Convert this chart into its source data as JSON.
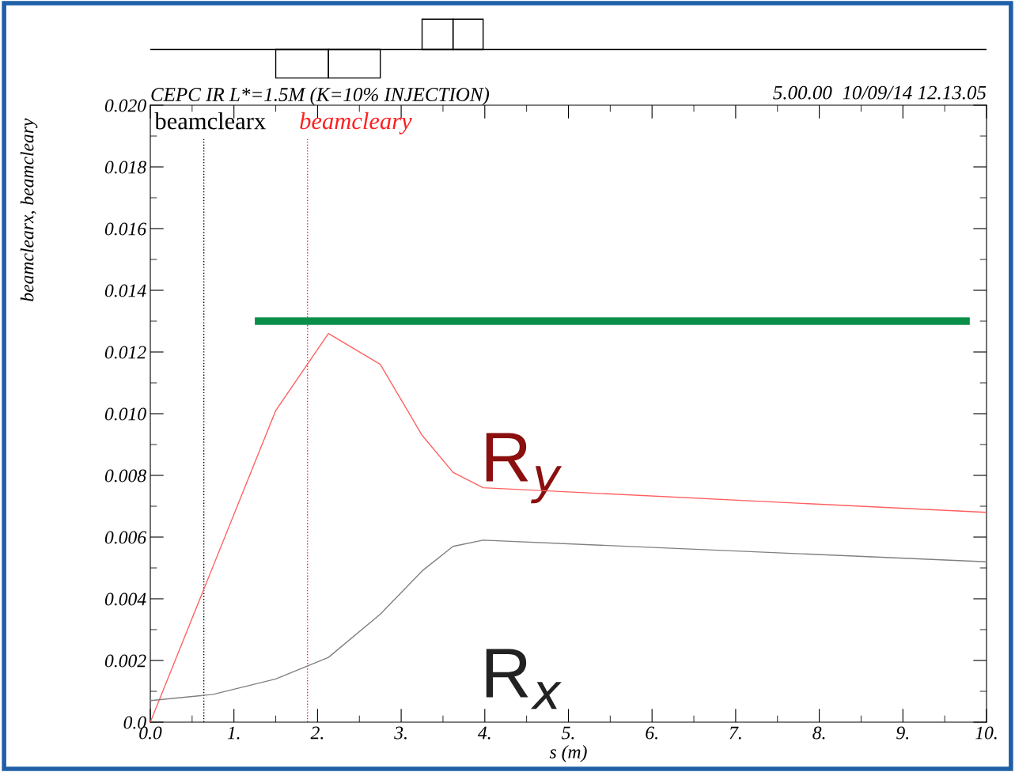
{
  "chart_data": {
    "type": "line",
    "title": "CEPC IR L*=1.5M (K=10% INJECTION)",
    "xlabel": "s (m)",
    "ylabel": "beamclearx, beamcleary",
    "annotations": [
      "5.00.00  10/09/14 12.13.05",
      "R$_{y}$",
      "R$_{x}$"
    ],
    "series": [
      {
        "color": "#ff6060",
        "x": [
          0,
          1.5,
          2.13,
          2.75,
          3.25,
          3.62,
          3.98,
          10
        ],
        "values": [
          0,
          0.0101,
          0.0126,
          0.0116,
          0.0093,
          0.0081,
          0.0076,
          0.0068
        ]
      },
      {
        "color": "#808080",
        "x": [
          0,
          0.75,
          1.5,
          2.13,
          2.75,
          3.25,
          3.62,
          3.98,
          10
        ],
        "values": [
          0.0007,
          0.0009,
          0.0014,
          0.0021,
          0.0035,
          0.0049,
          0.0057,
          0.0059,
          0.0052
        ]
      },
      {
        "color": "#0a8f4a",
        "x": [
          1.25,
          9.8
        ],
        "values": [
          0.013,
          0.013
        ]
      }
    ],
    "ref_lines": [
      {
        "axis": "x",
        "value": 0.64,
        "label": "beamclearx",
        "color": "#000000",
        "line_style": "dotted"
      },
      {
        "axis": "x",
        "value": 1.88,
        "label": "beamcleary",
        "color": "#ff2020",
        "line_style": "dotted"
      }
    ],
    "xlim": [
      0,
      10
    ],
    "ylim": [
      0,
      0.02
    ],
    "xticks": [
      {
        "value": 0,
        "label": "0.0"
      },
      {
        "value": 1,
        "label": "1."
      },
      {
        "value": 2,
        "label": "2."
      },
      {
        "value": 3,
        "label": "3."
      },
      {
        "value": 4,
        "label": "4."
      },
      {
        "value": 5,
        "label": "5."
      },
      {
        "value": 6,
        "label": "6."
      },
      {
        "value": 7,
        "label": "7."
      },
      {
        "value": 8,
        "label": "8."
      },
      {
        "value": 9,
        "label": "9."
      },
      {
        "value": 10,
        "label": "10."
      }
    ],
    "yticks": [
      {
        "value": 0,
        "label": "0.0"
      },
      0.002,
      0.004,
      0.006,
      0.008,
      {
        "value": 0.01,
        "label": "0.010"
      },
      0.012,
      0.014,
      0.016,
      0.018,
      {
        "value": 0.02,
        "label": "0.020"
      }
    ],
    "grid": false,
    "legend": false,
    "marker": "none",
    "line_style": "solid"
  }
}
